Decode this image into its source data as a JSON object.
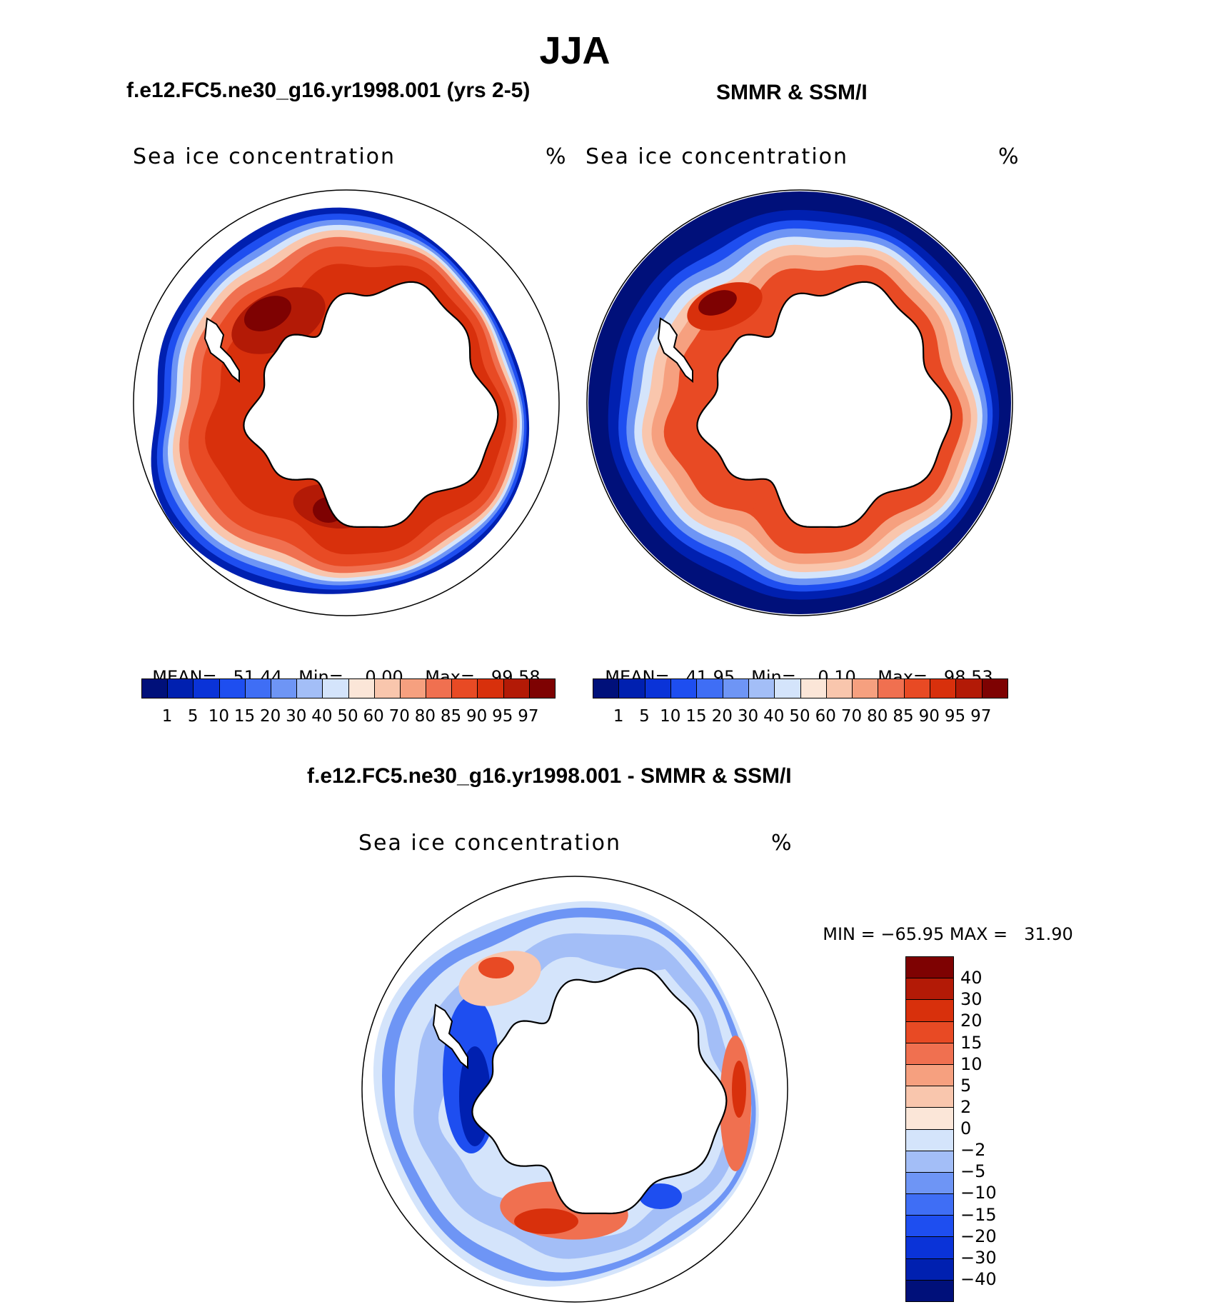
{
  "figure": {
    "title": "JJA",
    "panel1_title": "f.e12.FC5.ne30_g16.yr1998.001 (yrs 2-5)",
    "panel2_title": "SMMR & SSM/I",
    "diff_title": "f.e12.FC5.ne30_g16.yr1998.001 - SMMR & SSM/I"
  },
  "chart_data": [
    {
      "type": "heatmap",
      "projection": "south-polar-stereographic",
      "title": "f.e12.FC5.ne30_g16.yr1998.001 (yrs 2-5)",
      "variable": "Sea ice concentration",
      "units": "%",
      "stats": {
        "mean_label": "MEAN=",
        "mean": "51.44",
        "min_label": "Min=",
        "min": "0.00",
        "max_label": "Max=",
        "max": "99.58"
      },
      "levels": [
        "1",
        "5",
        "10",
        "15",
        "20",
        "30",
        "40",
        "50",
        "60",
        "70",
        "80",
        "85",
        "90",
        "95",
        "97"
      ],
      "colors": [
        "#00107a",
        "#0020b0",
        "#0a33d8",
        "#1e4ef0",
        "#3f6ef5",
        "#6e95f5",
        "#a3bef7",
        "#d4e4fb",
        "#fbe6d8",
        "#f9c6ad",
        "#f6a07f",
        "#f07050",
        "#e84a24",
        "#d8300c",
        "#b31a06",
        "#7e0202"
      ]
    },
    {
      "type": "heatmap",
      "projection": "south-polar-stereographic",
      "title": "SMMR & SSM/I",
      "variable": "Sea ice concentration",
      "units": "%",
      "stats": {
        "mean_label": "MEAN=",
        "mean": "41.95",
        "min_label": "Min=",
        "min": "0.10",
        "max_label": "Max=",
        "max": "98.53"
      },
      "levels": [
        "1",
        "5",
        "10",
        "15",
        "20",
        "30",
        "40",
        "50",
        "60",
        "70",
        "80",
        "85",
        "90",
        "95",
        "97"
      ],
      "colors": [
        "#00107a",
        "#0020b0",
        "#0a33d8",
        "#1e4ef0",
        "#3f6ef5",
        "#6e95f5",
        "#a3bef7",
        "#d4e4fb",
        "#fbe6d8",
        "#f9c6ad",
        "#f6a07f",
        "#f07050",
        "#e84a24",
        "#d8300c",
        "#b31a06",
        "#7e0202"
      ]
    },
    {
      "type": "heatmap",
      "projection": "south-polar-stereographic",
      "title": "f.e12.FC5.ne30_g16.yr1998.001 - SMMR & SSM/I",
      "variable": "Sea ice concentration",
      "units": "%",
      "stats": {
        "min_label": "MIN =",
        "min": "−65.95",
        "max_label": "MAX =",
        "max": "31.90"
      },
      "levels": [
        "40",
        "30",
        "20",
        "15",
        "10",
        "5",
        "2",
        "0",
        "−2",
        "−5",
        "−10",
        "−15",
        "−20",
        "−30",
        "−40"
      ],
      "colors": [
        "#7e0202",
        "#b31a06",
        "#d8300c",
        "#e84a24",
        "#f07050",
        "#f6a07f",
        "#f9c6ad",
        "#fbe6d8",
        "#d4e4fb",
        "#a3bef7",
        "#6e95f5",
        "#3f6ef5",
        "#1e4ef0",
        "#0a33d8",
        "#0020b0",
        "#00107a"
      ]
    }
  ]
}
